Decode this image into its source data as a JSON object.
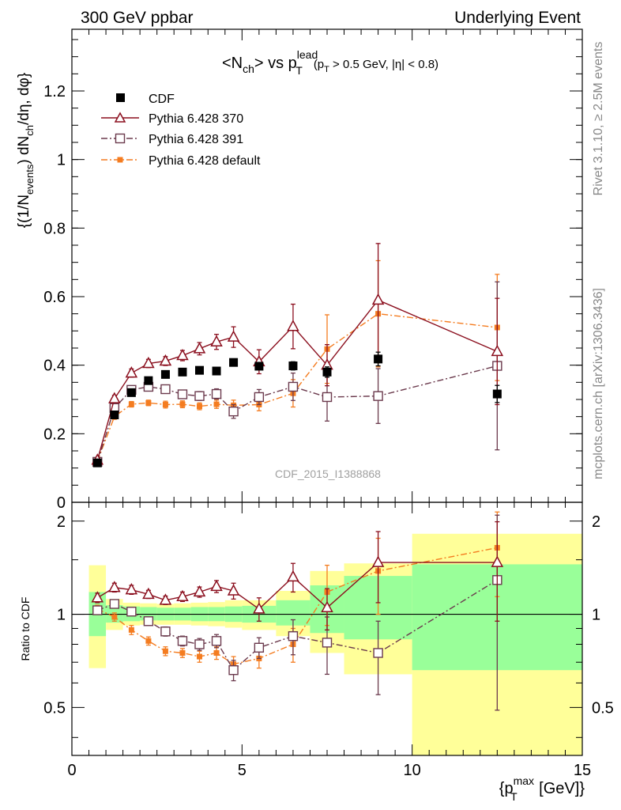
{
  "header": {
    "left": "300 GeV ppbar",
    "right": "Underlying Event"
  },
  "side_labels": {
    "rivet": "Rivet 3.1.10, ≥ 2.5M events",
    "mcplots": "mcplots.cern.ch [arXiv:1306.3436]"
  },
  "watermark": "CDF_2015_I1388868",
  "colors": {
    "cdf": "#000000",
    "p370": "#8b0f1e",
    "p391": "#6b3a4d",
    "pdef": "#f47c20",
    "band_inner": "#99ff99",
    "band_outer": "#ffff99"
  },
  "chart_data": [
    {
      "type": "scatter",
      "title_parts": {
        "main": "<N",
        "main_sub": "ch",
        "mid": "> vs p",
        "p_sup": "lead",
        "p_sub": "T",
        "cut_a": "(p",
        "cut_sub": "T",
        "cut_b": " > 0.5 GeV, |η| < 0.8)"
      },
      "ylabel_parts": {
        "a": "{(1/N",
        "a_sub": "events",
        "b": ") dN",
        "b_sub": "ch",
        "c": "/dη, dφ}"
      },
      "xlim": [
        0,
        15
      ],
      "ylim": [
        0,
        1.38
      ],
      "yticks": [
        0,
        0.2,
        0.4,
        0.6,
        0.8,
        1,
        1.2
      ],
      "ytick_labels": [
        "0",
        "0.2",
        "0.4",
        "0.6",
        "0.8",
        "1",
        "1.2"
      ],
      "legend_position": "top-left",
      "series": [
        {
          "name": "CDF",
          "marker": "filled-square",
          "x": [
            0.75,
            1.25,
            1.75,
            2.25,
            2.75,
            3.25,
            3.75,
            4.25,
            4.75,
            5.5,
            6.5,
            7.5,
            9.0,
            12.5
          ],
          "y": [
            0.115,
            0.255,
            0.32,
            0.355,
            0.373,
            0.38,
            0.385,
            0.383,
            0.408,
            0.397,
            0.398,
            0.38,
            0.418,
            0.316
          ],
          "err": [
            0.004,
            0.005,
            0.006,
            0.006,
            0.006,
            0.006,
            0.007,
            0.007,
            0.008,
            0.01,
            0.012,
            0.015,
            0.02,
            0.025
          ]
        },
        {
          "name": "Pythia 6.428 370",
          "marker": "open-triangle",
          "line": "solid",
          "x": [
            0.75,
            1.25,
            1.75,
            2.25,
            2.75,
            3.25,
            3.75,
            4.25,
            4.75,
            5.5,
            6.5,
            7.5,
            9.0,
            12.5
          ],
          "y": [
            0.123,
            0.302,
            0.377,
            0.405,
            0.412,
            0.428,
            0.448,
            0.468,
            0.482,
            0.41,
            0.513,
            0.4,
            0.59,
            0.44
          ],
          "err": [
            0.004,
            0.01,
            0.012,
            0.012,
            0.013,
            0.015,
            0.018,
            0.022,
            0.03,
            0.035,
            0.065,
            0.06,
            0.165,
            0.155
          ]
        },
        {
          "name": "Pythia 6.428 391",
          "marker": "open-square",
          "line": "dash-dot",
          "x": [
            0.75,
            1.25,
            1.75,
            2.25,
            2.75,
            3.25,
            3.75,
            4.25,
            4.75,
            5.5,
            6.5,
            7.5,
            9.0,
            12.5
          ],
          "y": [
            0.118,
            0.275,
            0.328,
            0.337,
            0.33,
            0.315,
            0.31,
            0.316,
            0.265,
            0.307,
            0.337,
            0.307,
            0.31,
            0.398
          ],
          "err": [
            0.004,
            0.01,
            0.01,
            0.01,
            0.012,
            0.012,
            0.013,
            0.015,
            0.02,
            0.022,
            0.04,
            0.07,
            0.08,
            0.245
          ]
        },
        {
          "name": "Pythia 6.428 default",
          "marker": "filled-square-small",
          "line": "dash-dot",
          "x": [
            0.75,
            1.25,
            1.75,
            2.25,
            2.75,
            3.25,
            3.75,
            4.25,
            4.75,
            5.5,
            6.5,
            7.5,
            9.0,
            12.5
          ],
          "y": [
            0.12,
            0.25,
            0.286,
            0.29,
            0.285,
            0.286,
            0.28,
            0.286,
            0.283,
            0.285,
            0.318,
            0.447,
            0.55,
            0.51
          ],
          "err": [
            0.004,
            0.008,
            0.008,
            0.008,
            0.01,
            0.01,
            0.01,
            0.012,
            0.015,
            0.018,
            0.04,
            0.1,
            0.155,
            0.155
          ]
        }
      ]
    },
    {
      "type": "scatter",
      "ylabel": "Ratio to CDF",
      "xlabel_parts": {
        "a": "{p",
        "sup": "max",
        "sub": "T",
        "b": " [GeV]}"
      },
      "xlim": [
        0,
        15
      ],
      "ylim": [
        0.35,
        2.3
      ],
      "y_scale": "log",
      "xticks": [
        0,
        5,
        10,
        15
      ],
      "xtick_labels": [
        "0",
        "5",
        "10",
        "15"
      ],
      "yticks": [
        0.5,
        1,
        2
      ],
      "ytick_labels": [
        "0.5",
        "1",
        "2"
      ],
      "reference_line": 1,
      "bands": {
        "edges": [
          0.5,
          1.0,
          1.5,
          2.0,
          2.5,
          3.0,
          3.5,
          4.0,
          4.5,
          5.0,
          6.0,
          7.0,
          8.0,
          10.0,
          15.0
        ],
        "inner_low": [
          0.85,
          0.94,
          0.95,
          0.955,
          0.955,
          0.955,
          0.95,
          0.95,
          0.945,
          0.94,
          0.92,
          0.87,
          0.83,
          0.66
        ],
        "inner_high": [
          1.18,
          1.07,
          1.06,
          1.055,
          1.05,
          1.05,
          1.055,
          1.055,
          1.06,
          1.065,
          1.11,
          1.24,
          1.33,
          1.45
        ],
        "outer_low": [
          0.67,
          0.89,
          0.92,
          0.925,
          0.925,
          0.925,
          0.92,
          0.915,
          0.905,
          0.89,
          0.85,
          0.75,
          0.64,
          0.35
        ],
        "outer_high": [
          1.44,
          1.12,
          1.09,
          1.085,
          1.08,
          1.085,
          1.09,
          1.095,
          1.11,
          1.11,
          1.19,
          1.38,
          1.46,
          1.82
        ]
      },
      "series": [
        {
          "name": "Pythia 6.428 370",
          "x": [
            0.75,
            1.25,
            1.75,
            2.25,
            2.75,
            3.25,
            3.75,
            4.25,
            4.75,
            5.5,
            6.5,
            7.5,
            9.0,
            12.5
          ],
          "y": [
            1.13,
            1.22,
            1.2,
            1.16,
            1.11,
            1.14,
            1.18,
            1.23,
            1.19,
            1.04,
            1.32,
            1.05,
            1.47,
            1.47
          ],
          "err": [
            0.04,
            0.04,
            0.04,
            0.035,
            0.035,
            0.04,
            0.045,
            0.055,
            0.07,
            0.09,
            0.14,
            0.16,
            0.38,
            0.52
          ]
        },
        {
          "name": "Pythia 6.428 391",
          "x": [
            0.75,
            1.25,
            1.75,
            2.25,
            2.75,
            3.25,
            3.75,
            4.25,
            4.75,
            5.5,
            6.5,
            7.5,
            9.0,
            12.5
          ],
          "y": [
            1.03,
            1.08,
            1.02,
            0.95,
            0.88,
            0.82,
            0.8,
            0.82,
            0.66,
            0.78,
            0.85,
            0.81,
            0.75,
            1.29
          ],
          "err": [
            0.03,
            0.03,
            0.03,
            0.03,
            0.03,
            0.03,
            0.035,
            0.04,
            0.05,
            0.06,
            0.11,
            0.17,
            0.2,
            0.8
          ]
        },
        {
          "name": "Pythia 6.428 default",
          "x": [
            0.75,
            1.25,
            1.75,
            2.25,
            2.75,
            3.25,
            3.75,
            4.25,
            4.75,
            5.5,
            6.5,
            7.5,
            9.0,
            12.5
          ],
          "y": [
            1.04,
            0.98,
            0.89,
            0.82,
            0.76,
            0.75,
            0.73,
            0.75,
            0.69,
            0.72,
            0.8,
            1.18,
            1.38,
            1.64
          ],
          "err": [
            0.03,
            0.03,
            0.03,
            0.025,
            0.025,
            0.025,
            0.03,
            0.035,
            0.04,
            0.05,
            0.1,
            0.26,
            0.38,
            0.5
          ]
        }
      ]
    }
  ]
}
